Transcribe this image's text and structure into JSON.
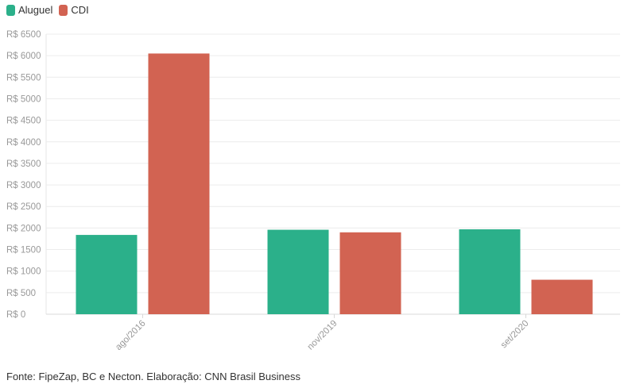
{
  "chart_data": {
    "type": "bar",
    "categories": [
      "ago/2016",
      "nov/2019",
      "set/2020"
    ],
    "series": [
      {
        "name": "Aluguel",
        "color": "#2bb08a",
        "values": [
          1840,
          1960,
          1970
        ]
      },
      {
        "name": "CDI",
        "color": "#d26352",
        "values": [
          6050,
          1900,
          800
        ]
      }
    ],
    "y_ticks": [
      0,
      500,
      1000,
      1500,
      2000,
      2500,
      3000,
      3500,
      4000,
      4500,
      5000,
      5500,
      6000,
      6500
    ],
    "y_tick_prefix": "R$ ",
    "ylim": [
      0,
      6500
    ],
    "grid": true,
    "legend": "top-left"
  },
  "legend": {
    "items": [
      {
        "label": "Aluguel",
        "color": "#2bb08a"
      },
      {
        "label": "CDI",
        "color": "#d26352"
      }
    ]
  },
  "footer": {
    "source": "Fonte: FipeZap, BC e Necton. Elaboração: CNN Brasil Business"
  }
}
